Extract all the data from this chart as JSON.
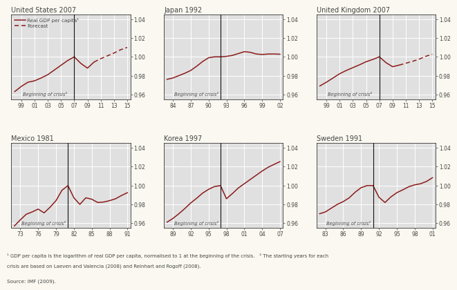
{
  "background_color": "#faf8f0",
  "plot_bg_color": "#e0e0e0",
  "line_color": "#8b1a1a",
  "title_color": "#444444",
  "tick_color": "#444444",
  "label_color": "#444444",
  "grid_color": "#ffffff",
  "vline_color": "#111111",
  "footnote_line1": "¹ GDP per capita is the logarithm of real GDP per capita, normalised to 1 at the beginning of the crisis.   ² The starting years for each",
  "footnote_line2": "crisis are based on Laeven and Valencia (2008) and Reinhart and Rogoff (2008).",
  "source": "Source: IMF (2009).",
  "panels": [
    {
      "title": "United States 2007",
      "crisis_year": 2007,
      "xticks": [
        1999,
        2001,
        2003,
        2005,
        2007,
        2009,
        2011,
        2013,
        2015
      ],
      "xtick_labels": [
        "99",
        "01",
        "03",
        "05",
        "07",
        "09",
        "11",
        "13",
        "15"
      ],
      "xlim": [
        1997.5,
        2015.5
      ],
      "ylim": [
        0.955,
        1.045
      ],
      "yticks": [
        0.96,
        0.98,
        1.0,
        1.02,
        1.04
      ],
      "has_legend": true,
      "solid_x": [
        1998,
        1999,
        2000,
        2001,
        2002,
        2003,
        2004,
        2005,
        2006,
        2007,
        2008,
        2009,
        2010
      ],
      "solid_y": [
        0.963,
        0.9685,
        0.973,
        0.9745,
        0.9775,
        0.981,
        0.986,
        0.991,
        0.996,
        1.0,
        0.993,
        0.988,
        0.9945
      ],
      "dash_x": [
        2010,
        2011,
        2012,
        2013,
        2014,
        2015
      ],
      "dash_y": [
        0.9945,
        0.998,
        1.001,
        1.004,
        1.0075,
        1.01
      ]
    },
    {
      "title": "Japan 1992",
      "crisis_year": 1992,
      "xticks": [
        1984,
        1987,
        1990,
        1993,
        1996,
        1999,
        2002
      ],
      "xtick_labels": [
        "84",
        "87",
        "90",
        "93",
        "96",
        "99",
        "02"
      ],
      "xlim": [
        1982.5,
        2002.5
      ],
      "ylim": [
        0.955,
        1.045
      ],
      "yticks": [
        0.96,
        0.98,
        1.0,
        1.02,
        1.04
      ],
      "has_legend": false,
      "solid_x": [
        1983,
        1984,
        1985,
        1986,
        1987,
        1988,
        1989,
        1990,
        1991,
        1992,
        1993,
        1994,
        1995,
        1996,
        1997,
        1998,
        1999,
        2000,
        2001,
        2002
      ],
      "solid_y": [
        0.976,
        0.9775,
        0.98,
        0.9825,
        0.9855,
        0.99,
        0.995,
        0.999,
        1.0,
        1.0,
        1.0005,
        1.0015,
        1.0035,
        1.0055,
        1.0048,
        1.003,
        1.0025,
        1.003,
        1.003,
        1.0028
      ],
      "dash_x": [],
      "dash_y": []
    },
    {
      "title": "United Kingdom 2007",
      "crisis_year": 2007,
      "xticks": [
        1999,
        2001,
        2003,
        2005,
        2007,
        2009,
        2011,
        2013,
        2015
      ],
      "xtick_labels": [
        "99",
        "01",
        "03",
        "05",
        "07",
        "09",
        "11",
        "13",
        "15"
      ],
      "xlim": [
        1997.5,
        2015.5
      ],
      "ylim": [
        0.955,
        1.045
      ],
      "yticks": [
        0.96,
        0.98,
        1.0,
        1.02,
        1.04
      ],
      "has_legend": false,
      "solid_x": [
        1998,
        1999,
        2000,
        2001,
        2002,
        2003,
        2004,
        2005,
        2006,
        2007,
        2008,
        2009,
        2010
      ],
      "solid_y": [
        0.969,
        0.973,
        0.9775,
        0.982,
        0.9855,
        0.9885,
        0.9915,
        0.9948,
        0.9972,
        1.0,
        0.9938,
        0.9895,
        0.9912
      ],
      "dash_x": [
        2010,
        2011,
        2012,
        2013,
        2014,
        2015
      ],
      "dash_y": [
        0.9912,
        0.9932,
        0.9952,
        0.9975,
        1.0005,
        1.0028
      ]
    },
    {
      "title": "Mexico 1981",
      "crisis_year": 1981,
      "xticks": [
        1973,
        1976,
        1979,
        1982,
        1985,
        1988,
        1991
      ],
      "xtick_labels": [
        "73",
        "76",
        "79",
        "82",
        "85",
        "88",
        "91"
      ],
      "xlim": [
        1971.5,
        1991.5
      ],
      "ylim": [
        0.955,
        1.045
      ],
      "yticks": [
        0.96,
        0.98,
        1.0,
        1.02,
        1.04
      ],
      "has_legend": false,
      "solid_x": [
        1972,
        1973,
        1974,
        1975,
        1976,
        1977,
        1978,
        1979,
        1980,
        1981,
        1982,
        1983,
        1984,
        1985,
        1986,
        1987,
        1988,
        1989,
        1990,
        1991
      ],
      "solid_y": [
        0.957,
        0.9635,
        0.9695,
        0.972,
        0.975,
        0.971,
        0.977,
        0.984,
        0.995,
        1.0,
        0.987,
        0.98,
        0.987,
        0.9855,
        0.982,
        0.9825,
        0.984,
        0.986,
        0.9895,
        0.9925
      ],
      "dash_x": [],
      "dash_y": []
    },
    {
      "title": "Korea 1997",
      "crisis_year": 1997,
      "xticks": [
        1989,
        1992,
        1995,
        1998,
        2001,
        2004,
        2007
      ],
      "xtick_labels": [
        "89",
        "92",
        "95",
        "98",
        "01",
        "04",
        "07"
      ],
      "xlim": [
        1987.5,
        2007.5
      ],
      "ylim": [
        0.955,
        1.045
      ],
      "yticks": [
        0.96,
        0.98,
        1.0,
        1.02,
        1.04
      ],
      "has_legend": false,
      "solid_x": [
        1988,
        1989,
        1990,
        1991,
        1992,
        1993,
        1994,
        1995,
        1996,
        1997,
        1998,
        1999,
        2000,
        2001,
        2002,
        2003,
        2004,
        2005,
        2006,
        2007
      ],
      "solid_y": [
        0.961,
        0.965,
        0.97,
        0.9755,
        0.9815,
        0.9865,
        0.992,
        0.996,
        0.999,
        1.0,
        0.986,
        0.9915,
        0.9975,
        1.002,
        1.0065,
        1.011,
        1.0155,
        1.0195,
        1.0225,
        1.0255
      ],
      "dash_x": [],
      "dash_y": []
    },
    {
      "title": "Sweden 1991",
      "crisis_year": 1991,
      "xticks": [
        1983,
        1986,
        1989,
        1992,
        1995,
        1998,
        2001
      ],
      "xtick_labels": [
        "83",
        "86",
        "89",
        "92",
        "95",
        "98",
        "01"
      ],
      "xlim": [
        1981.5,
        2001.5
      ],
      "ylim": [
        0.955,
        1.045
      ],
      "yticks": [
        0.96,
        0.98,
        1.0,
        1.02,
        1.04
      ],
      "has_legend": false,
      "solid_x": [
        1982,
        1983,
        1984,
        1985,
        1986,
        1987,
        1988,
        1989,
        1990,
        1991,
        1992,
        1993,
        1994,
        1995,
        1996,
        1997,
        1998,
        1999,
        2000,
        2001
      ],
      "solid_y": [
        0.97,
        0.972,
        0.976,
        0.98,
        0.983,
        0.987,
        0.993,
        0.9978,
        1.0,
        1.0,
        0.9875,
        0.982,
        0.988,
        0.9925,
        0.9955,
        0.9988,
        1.0008,
        1.002,
        1.0045,
        1.0085
      ],
      "dash_x": [],
      "dash_y": []
    }
  ]
}
